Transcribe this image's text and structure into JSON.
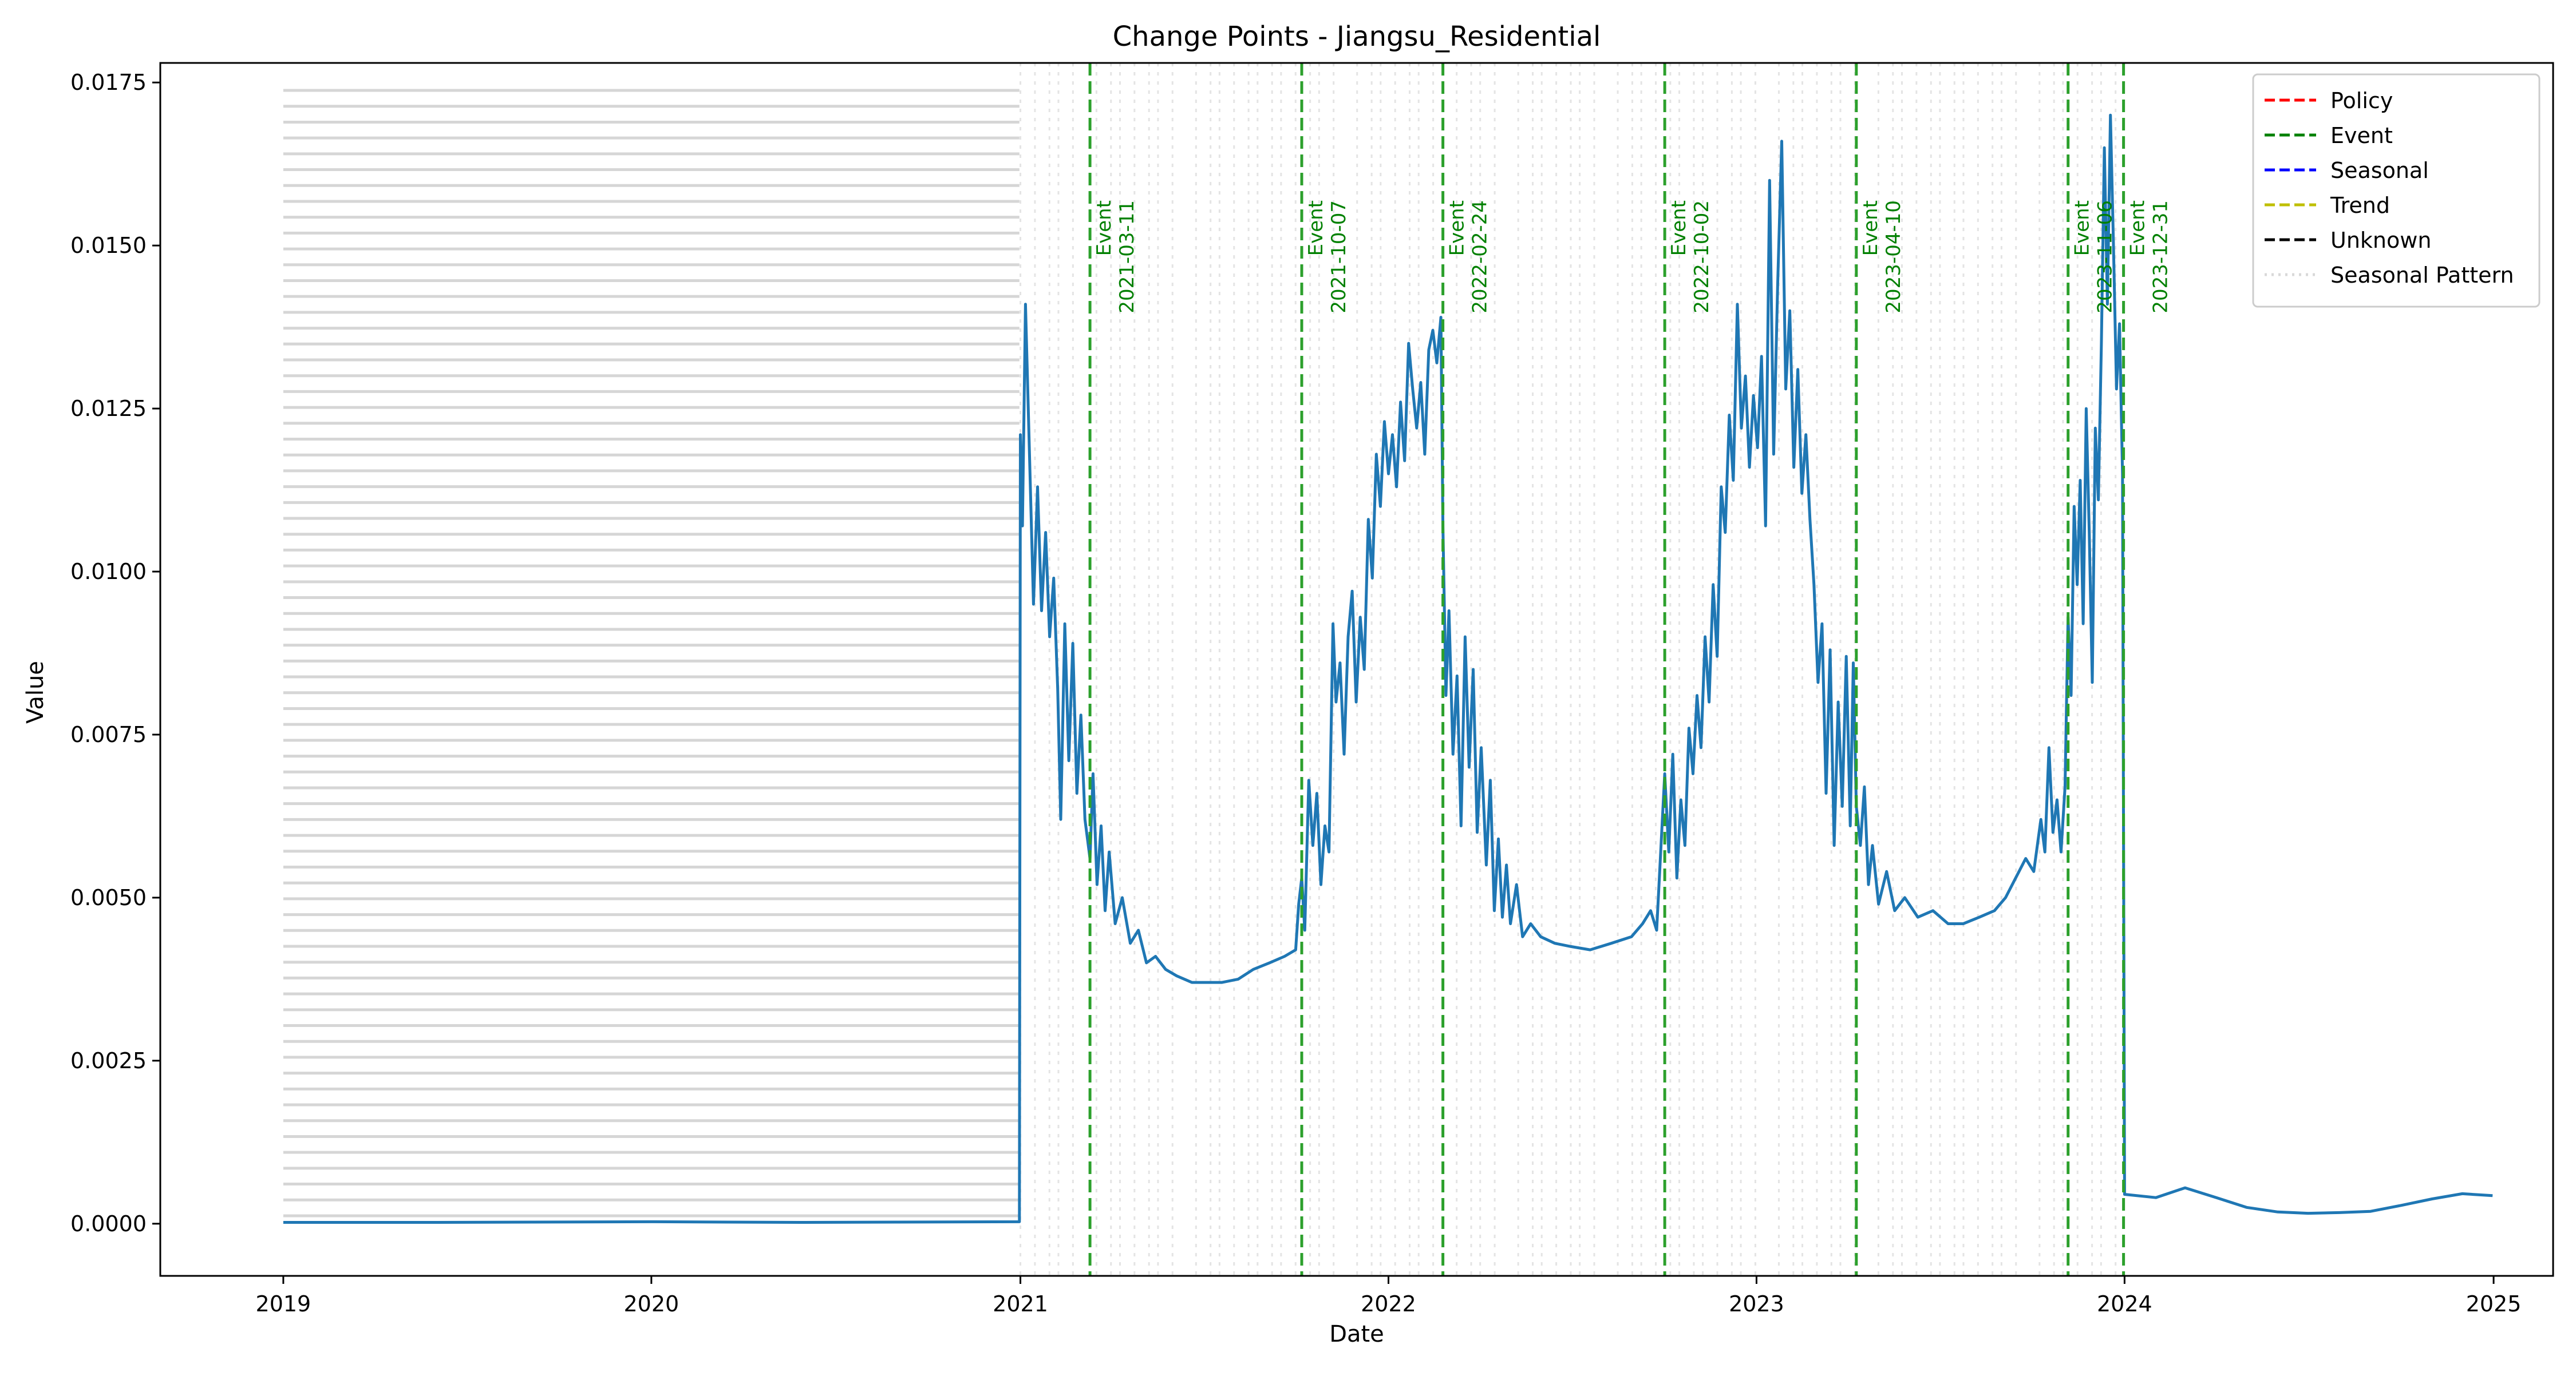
{
  "chart_data": {
    "type": "line",
    "title": "Change Points - Jiangsu_Residential",
    "xlabel": "Date",
    "ylabel": "Value",
    "xlim": [
      "2018-09-01",
      "2025-03-01"
    ],
    "ylim": [
      -0.0008,
      0.0178
    ],
    "x_ticks": [
      "2019-01-01",
      "2020-01-01",
      "2021-01-01",
      "2022-01-01",
      "2023-01-01",
      "2024-01-01",
      "2025-01-01"
    ],
    "x_tick_labels": [
      "2019",
      "2020",
      "2021",
      "2022",
      "2023",
      "2024",
      "2025"
    ],
    "y_ticks": [
      0.0,
      0.0025,
      0.005,
      0.0075,
      0.01,
      0.0125,
      0.015,
      0.0175
    ],
    "y_tick_labels": [
      "0.0000",
      "0.0025",
      "0.0050",
      "0.0075",
      "0.0100",
      "0.0125",
      "0.0150",
      "0.0175"
    ],
    "grid": false,
    "legend_position": "top-right",
    "legend": [
      {
        "label": "Policy",
        "color": "#ff0000",
        "style": "dashed"
      },
      {
        "label": "Event",
        "color": "#008000",
        "style": "dashed"
      },
      {
        "label": "Seasonal",
        "color": "#0000ff",
        "style": "dashed"
      },
      {
        "label": "Trend",
        "color": "#bfbf00",
        "style": "dashed"
      },
      {
        "label": "Unknown",
        "color": "#000000",
        "style": "dashed"
      },
      {
        "label": "Seasonal Pattern",
        "color": "#d9d9d9",
        "style": "dotted"
      }
    ],
    "series": [
      {
        "color": "#1f77b4",
        "points": [
          [
            "2019-01-01",
            2e-05
          ],
          [
            "2019-06-01",
            2e-05
          ],
          [
            "2020-01-01",
            3e-05
          ],
          [
            "2020-06-01",
            2e-05
          ],
          [
            "2020-12-31",
            3e-05
          ],
          [
            "2021-01-01",
            0.0121
          ],
          [
            "2021-01-03",
            0.0107
          ],
          [
            "2021-01-06",
            0.0141
          ],
          [
            "2021-01-10",
            0.0118
          ],
          [
            "2021-01-14",
            0.0095
          ],
          [
            "2021-01-18",
            0.0113
          ],
          [
            "2021-01-22",
            0.0094
          ],
          [
            "2021-01-26",
            0.0106
          ],
          [
            "2021-01-30",
            0.009
          ],
          [
            "2021-02-03",
            0.0099
          ],
          [
            "2021-02-07",
            0.0082
          ],
          [
            "2021-02-10",
            0.0062
          ],
          [
            "2021-02-14",
            0.0092
          ],
          [
            "2021-02-18",
            0.0071
          ],
          [
            "2021-02-22",
            0.0089
          ],
          [
            "2021-02-26",
            0.0066
          ],
          [
            "2021-03-02",
            0.0078
          ],
          [
            "2021-03-06",
            0.0062
          ],
          [
            "2021-03-11",
            0.0056
          ],
          [
            "2021-03-14",
            0.0069
          ],
          [
            "2021-03-18",
            0.0052
          ],
          [
            "2021-03-22",
            0.0061
          ],
          [
            "2021-03-26",
            0.0048
          ],
          [
            "2021-03-30",
            0.0057
          ],
          [
            "2021-04-05",
            0.0046
          ],
          [
            "2021-04-12",
            0.005
          ],
          [
            "2021-04-20",
            0.0043
          ],
          [
            "2021-04-28",
            0.0045
          ],
          [
            "2021-05-06",
            0.004
          ],
          [
            "2021-05-15",
            0.0041
          ],
          [
            "2021-05-25",
            0.0039
          ],
          [
            "2021-06-05",
            0.0038
          ],
          [
            "2021-06-20",
            0.0037
          ],
          [
            "2021-07-05",
            0.0037
          ],
          [
            "2021-07-20",
            0.0037
          ],
          [
            "2021-08-05",
            0.00375
          ],
          [
            "2021-08-20",
            0.0039
          ],
          [
            "2021-09-05",
            0.004
          ],
          [
            "2021-09-20",
            0.0041
          ],
          [
            "2021-10-01",
            0.0042
          ],
          [
            "2021-10-04",
            0.0049
          ],
          [
            "2021-10-07",
            0.0053
          ],
          [
            "2021-10-10",
            0.0045
          ],
          [
            "2021-10-14",
            0.0068
          ],
          [
            "2021-10-18",
            0.0058
          ],
          [
            "2021-10-22",
            0.0066
          ],
          [
            "2021-10-26",
            0.0052
          ],
          [
            "2021-10-30",
            0.0061
          ],
          [
            "2021-11-03",
            0.0057
          ],
          [
            "2021-11-07",
            0.0092
          ],
          [
            "2021-11-10",
            0.008
          ],
          [
            "2021-11-14",
            0.0086
          ],
          [
            "2021-11-18",
            0.0072
          ],
          [
            "2021-11-22",
            0.009
          ],
          [
            "2021-11-26",
            0.0097
          ],
          [
            "2021-11-30",
            0.008
          ],
          [
            "2021-12-04",
            0.0093
          ],
          [
            "2021-12-08",
            0.0085
          ],
          [
            "2021-12-12",
            0.0108
          ],
          [
            "2021-12-16",
            0.0099
          ],
          [
            "2021-12-20",
            0.0118
          ],
          [
            "2021-12-24",
            0.011
          ],
          [
            "2021-12-28",
            0.0123
          ],
          [
            "2022-01-01",
            0.0115
          ],
          [
            "2022-01-05",
            0.0121
          ],
          [
            "2022-01-09",
            0.0113
          ],
          [
            "2022-01-13",
            0.0126
          ],
          [
            "2022-01-17",
            0.0117
          ],
          [
            "2022-01-21",
            0.0135
          ],
          [
            "2022-01-25",
            0.0128
          ],
          [
            "2022-01-29",
            0.0122
          ],
          [
            "2022-02-02",
            0.0129
          ],
          [
            "2022-02-06",
            0.0118
          ],
          [
            "2022-02-10",
            0.0134
          ],
          [
            "2022-02-14",
            0.0137
          ],
          [
            "2022-02-18",
            0.0132
          ],
          [
            "2022-02-22",
            0.0139
          ],
          [
            "2022-02-24",
            0.0107
          ],
          [
            "2022-02-27",
            0.0081
          ],
          [
            "2022-03-02",
            0.0094
          ],
          [
            "2022-03-06",
            0.0072
          ],
          [
            "2022-03-10",
            0.0084
          ],
          [
            "2022-03-14",
            0.0061
          ],
          [
            "2022-03-18",
            0.009
          ],
          [
            "2022-03-22",
            0.007
          ],
          [
            "2022-03-26",
            0.0085
          ],
          [
            "2022-03-30",
            0.006
          ],
          [
            "2022-04-03",
            0.0073
          ],
          [
            "2022-04-08",
            0.0055
          ],
          [
            "2022-04-12",
            0.0068
          ],
          [
            "2022-04-16",
            0.0048
          ],
          [
            "2022-04-20",
            0.0059
          ],
          [
            "2022-04-24",
            0.0047
          ],
          [
            "2022-04-28",
            0.0055
          ],
          [
            "2022-05-02",
            0.0046
          ],
          [
            "2022-05-08",
            0.0052
          ],
          [
            "2022-05-14",
            0.0044
          ],
          [
            "2022-05-22",
            0.0046
          ],
          [
            "2022-06-01",
            0.0044
          ],
          [
            "2022-06-15",
            0.0043
          ],
          [
            "2022-07-01",
            0.00425
          ],
          [
            "2022-07-20",
            0.0042
          ],
          [
            "2022-08-10",
            0.0043
          ],
          [
            "2022-08-30",
            0.0044
          ],
          [
            "2022-09-10",
            0.0046
          ],
          [
            "2022-09-18",
            0.0048
          ],
          [
            "2022-09-24",
            0.0045
          ],
          [
            "2022-10-02",
            0.0069
          ],
          [
            "2022-10-06",
            0.0057
          ],
          [
            "2022-10-10",
            0.0072
          ],
          [
            "2022-10-14",
            0.0053
          ],
          [
            "2022-10-18",
            0.0065
          ],
          [
            "2022-10-22",
            0.0058
          ],
          [
            "2022-10-26",
            0.0076
          ],
          [
            "2022-10-30",
            0.0069
          ],
          [
            "2022-11-03",
            0.0081
          ],
          [
            "2022-11-07",
            0.0073
          ],
          [
            "2022-11-11",
            0.009
          ],
          [
            "2022-11-15",
            0.008
          ],
          [
            "2022-11-19",
            0.0098
          ],
          [
            "2022-11-23",
            0.0087
          ],
          [
            "2022-11-27",
            0.0113
          ],
          [
            "2022-12-01",
            0.0106
          ],
          [
            "2022-12-05",
            0.0124
          ],
          [
            "2022-12-09",
            0.0114
          ],
          [
            "2022-12-13",
            0.0141
          ],
          [
            "2022-12-17",
            0.0122
          ],
          [
            "2022-12-21",
            0.013
          ],
          [
            "2022-12-25",
            0.0116
          ],
          [
            "2022-12-29",
            0.0127
          ],
          [
            "2023-01-02",
            0.0119
          ],
          [
            "2023-01-06",
            0.0133
          ],
          [
            "2023-01-10",
            0.0107
          ],
          [
            "2023-01-14",
            0.016
          ],
          [
            "2023-01-18",
            0.0118
          ],
          [
            "2023-01-22",
            0.0144
          ],
          [
            "2023-01-26",
            0.0166
          ],
          [
            "2023-01-30",
            0.0128
          ],
          [
            "2023-02-03",
            0.014
          ],
          [
            "2023-02-07",
            0.0116
          ],
          [
            "2023-02-11",
            0.0131
          ],
          [
            "2023-02-15",
            0.0112
          ],
          [
            "2023-02-19",
            0.0121
          ],
          [
            "2023-02-23",
            0.0108
          ],
          [
            "2023-02-27",
            0.0098
          ],
          [
            "2023-03-03",
            0.0083
          ],
          [
            "2023-03-07",
            0.0092
          ],
          [
            "2023-03-11",
            0.0066
          ],
          [
            "2023-03-15",
            0.0088
          ],
          [
            "2023-03-19",
            0.0058
          ],
          [
            "2023-03-23",
            0.008
          ],
          [
            "2023-03-27",
            0.0064
          ],
          [
            "2023-03-31",
            0.0087
          ],
          [
            "2023-04-04",
            0.0061
          ],
          [
            "2023-04-07",
            0.0086
          ],
          [
            "2023-04-10",
            0.0064
          ],
          [
            "2023-04-14",
            0.0058
          ],
          [
            "2023-04-18",
            0.0067
          ],
          [
            "2023-04-22",
            0.0052
          ],
          [
            "2023-04-26",
            0.0058
          ],
          [
            "2023-05-02",
            0.0049
          ],
          [
            "2023-05-10",
            0.0054
          ],
          [
            "2023-05-18",
            0.0048
          ],
          [
            "2023-05-28",
            0.005
          ],
          [
            "2023-06-10",
            0.0047
          ],
          [
            "2023-06-25",
            0.0048
          ],
          [
            "2023-07-10",
            0.0046
          ],
          [
            "2023-07-25",
            0.0046
          ],
          [
            "2023-08-10",
            0.0047
          ],
          [
            "2023-08-25",
            0.0048
          ],
          [
            "2023-09-05",
            0.005
          ],
          [
            "2023-09-15",
            0.0053
          ],
          [
            "2023-09-25",
            0.0056
          ],
          [
            "2023-10-03",
            0.0054
          ],
          [
            "2023-10-10",
            0.0062
          ],
          [
            "2023-10-14",
            0.0057
          ],
          [
            "2023-10-18",
            0.0073
          ],
          [
            "2023-10-22",
            0.006
          ],
          [
            "2023-10-26",
            0.0065
          ],
          [
            "2023-10-30",
            0.0057
          ],
          [
            "2023-11-03",
            0.0067
          ],
          [
            "2023-11-06",
            0.0093
          ],
          [
            "2023-11-09",
            0.0081
          ],
          [
            "2023-11-12",
            0.011
          ],
          [
            "2023-11-15",
            0.0098
          ],
          [
            "2023-11-18",
            0.0114
          ],
          [
            "2023-11-21",
            0.0092
          ],
          [
            "2023-11-24",
            0.0125
          ],
          [
            "2023-11-27",
            0.0106
          ],
          [
            "2023-11-30",
            0.0083
          ],
          [
            "2023-12-03",
            0.0122
          ],
          [
            "2023-12-06",
            0.0111
          ],
          [
            "2023-12-09",
            0.0135
          ],
          [
            "2023-12-12",
            0.0165
          ],
          [
            "2023-12-15",
            0.0141
          ],
          [
            "2023-12-18",
            0.017
          ],
          [
            "2023-12-21",
            0.015
          ],
          [
            "2023-12-24",
            0.0128
          ],
          [
            "2023-12-27",
            0.0138
          ],
          [
            "2023-12-30",
            0.0115
          ],
          [
            "2024-01-01",
            0.00045
          ],
          [
            "2024-02-01",
            0.0004
          ],
          [
            "2024-03-01",
            0.00055
          ],
          [
            "2024-04-01",
            0.0004
          ],
          [
            "2024-05-01",
            0.00025
          ],
          [
            "2024-06-01",
            0.00018
          ],
          [
            "2024-07-01",
            0.00016
          ],
          [
            "2024-08-01",
            0.00017
          ],
          [
            "2024-09-01",
            0.00019
          ],
          [
            "2024-10-01",
            0.00028
          ],
          [
            "2024-11-01",
            0.00038
          ],
          [
            "2024-12-01",
            0.00046
          ],
          [
            "2024-12-31",
            0.00043
          ]
        ]
      }
    ],
    "change_points": [
      {
        "date": "2021-03-11",
        "type": "Event",
        "label_type": "Event",
        "label_date": "2021-03-11",
        "color": "#2ca02c"
      },
      {
        "date": "2021-10-07",
        "type": "Event",
        "label_type": "Event",
        "label_date": "2021-10-07",
        "color": "#2ca02c"
      },
      {
        "date": "2022-02-24",
        "type": "Event",
        "label_type": "Event",
        "label_date": "2022-02-24",
        "color": "#2ca02c"
      },
      {
        "date": "2022-10-02",
        "type": "Event",
        "label_type": "Event",
        "label_date": "2022-10-02",
        "color": "#2ca02c"
      },
      {
        "date": "2023-04-10",
        "type": "Event",
        "label_type": "Event",
        "label_date": "2023-04-10",
        "color": "#2ca02c"
      },
      {
        "date": "2023-11-06",
        "type": "Event",
        "label_type": "Event",
        "label_date": "2023-11-06",
        "color": "#2ca02c"
      },
      {
        "date": "2023-12-31",
        "type": "Event",
        "label_type": "Event",
        "label_date": "2023-12-31",
        "color": "#2ca02c"
      }
    ],
    "seasonal_pattern": {
      "horizontal_band": {
        "x_from": "2019-01-01",
        "x_to": "2020-12-31",
        "y_from": 0.0,
        "y_to": 0.0175,
        "count": 72
      },
      "vertical_band": {
        "x_from": "2021-01-01",
        "x_to": "2024-01-01",
        "count": 80
      }
    }
  }
}
